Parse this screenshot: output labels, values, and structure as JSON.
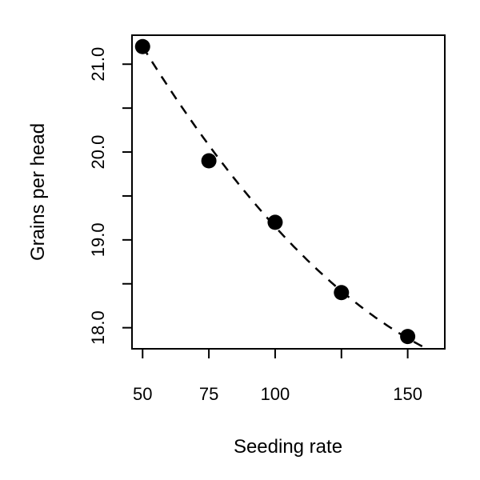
{
  "chart_data": {
    "type": "scatter",
    "title": "",
    "xlabel": "Seeding rate",
    "ylabel": "Grains per head",
    "xlim": [
      46,
      164
    ],
    "ylim": [
      17.76,
      21.33
    ],
    "x_ticks": [
      50,
      75,
      100,
      125,
      150
    ],
    "x_tick_labels": [
      "50",
      "75",
      "100",
      "",
      "150"
    ],
    "y_ticks": [
      18.0,
      18.5,
      19.0,
      19.5,
      20.0,
      20.5,
      21.0
    ],
    "y_tick_labels": [
      "18.0",
      "",
      "19.0",
      "",
      "20.0",
      "",
      "21.0"
    ],
    "grid": false,
    "points": {
      "x": [
        50,
        75,
        100,
        125,
        150
      ],
      "y": [
        21.2,
        19.9,
        19.2,
        18.4,
        17.9
      ]
    },
    "fit_curve": {
      "style": "dashed",
      "model": "quadratic",
      "coefficients": [
        24.03,
        -0.0644,
        0.000156
      ],
      "x_range": [
        50,
        165
      ]
    }
  }
}
